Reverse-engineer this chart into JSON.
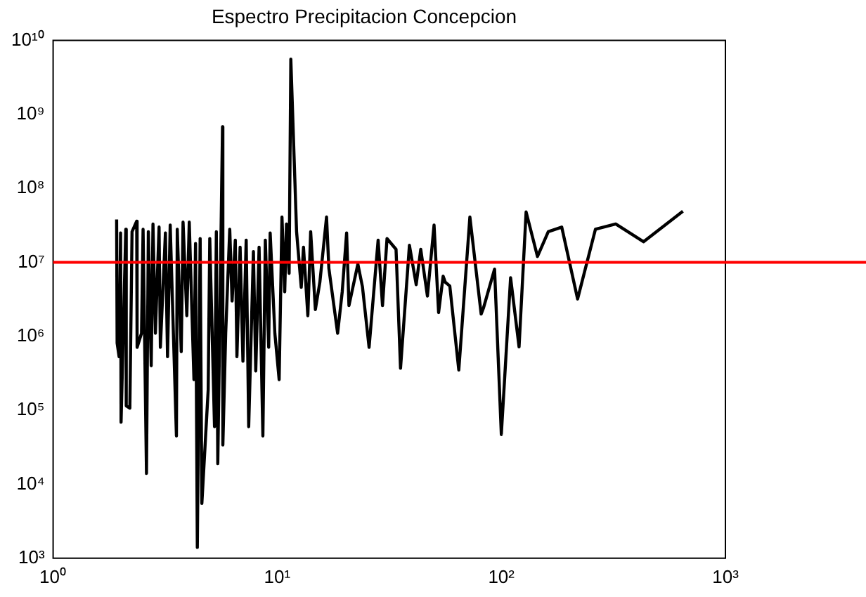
{
  "chart_data": {
    "type": "line",
    "title": "Espectro Precipitacion Concepcion",
    "log": "xy",
    "grid": false,
    "legend": false,
    "marker": "none",
    "line_style": "solid",
    "xlim": [
      1,
      1000
    ],
    "xticks": [
      {
        "value": 1,
        "label": "10⁰"
      },
      {
        "value": 10,
        "label": "10¹"
      },
      {
        "value": 100,
        "label": "10²"
      },
      {
        "value": 1000,
        "label": "10³"
      }
    ],
    "ylim": [
      1000,
      10000000000
    ],
    "yticks": [
      {
        "value": 1000,
        "label": "10³"
      },
      {
        "value": 10000,
        "label": "10⁴"
      },
      {
        "value": 100000,
        "label": "10⁵"
      },
      {
        "value": 1000000,
        "label": "10⁶"
      },
      {
        "value": 10000000,
        "label": "10⁷"
      },
      {
        "value": 100000000,
        "label": "10⁸"
      },
      {
        "value": 1000000000,
        "label": "10⁹"
      },
      {
        "value": 10000000000,
        "label": "10¹⁰"
      }
    ],
    "ref_lines": [
      {
        "axis": "y",
        "value": 10000000,
        "color": "#ff0000"
      }
    ],
    "series": [
      {
        "color": "#000000",
        "x": [
          1.92,
          1.93,
          1.97,
          2.0,
          2.01,
          2.11,
          2.12,
          2.2,
          2.25,
          2.36,
          2.37,
          2.48,
          2.52,
          2.61,
          2.66,
          2.74,
          2.79,
          2.86,
          2.97,
          3.01,
          3.17,
          3.24,
          3.33,
          3.55,
          3.58,
          3.73,
          3.8,
          3.95,
          4.05,
          4.25,
          4.32,
          4.4,
          4.53,
          4.61,
          4.92,
          5.0,
          5.25,
          5.35,
          5.43,
          5.7,
          5.72,
          5.89,
          6.14,
          6.29,
          6.5,
          6.61,
          6.83,
          7.03,
          7.27,
          7.46,
          7.83,
          8.02,
          8.3,
          8.63,
          8.85,
          9.16,
          9.3,
          9.76,
          10.2,
          10.5,
          10.8,
          11.0,
          11.3,
          11.5,
          12.2,
          12.8,
          13.1,
          13.7,
          14.1,
          14.8,
          15.5,
          16.6,
          17.0,
          18.6,
          19.5,
          20.4,
          20.9,
          22.9,
          24.0,
          25.7,
          28.2,
          29.5,
          30.9,
          33.9,
          35.5,
          38.9,
          41.7,
          43.7,
          46.8,
          50.1,
          52.5,
          55,
          56.2,
          58.9,
          64.6,
          72.4,
          81.3,
          83.2,
          93.3,
          100,
          110,
          120,
          129,
          145,
          162,
          186,
          219,
          263,
          324,
          431,
          646
        ],
        "values": [
          38000000,
          810000,
          530000,
          25000000,
          69000,
          28000000,
          115000,
          107000,
          26000000,
          36000000,
          710000,
          1100000,
          28000000,
          14000,
          26000000,
          400000,
          33000000,
          1100000,
          30000000,
          710000,
          25000000,
          530000,
          32000000,
          45000,
          28000000,
          620000,
          35000000,
          1900000,
          35000000,
          260000,
          18000000,
          1400,
          21000000,
          5500,
          190000,
          21000000,
          60000,
          26000000,
          19000,
          680000000,
          34000,
          1100000,
          28000000,
          3000000,
          20000000,
          530000,
          16000000,
          460000,
          20000000,
          60000,
          14000000,
          340000,
          16000000,
          45000,
          20000000,
          710000,
          25000000,
          1100000,
          260000,
          41000000,
          4000000,
          33000000,
          7100000,
          5600000000,
          26000000,
          4600000,
          16000000,
          1900000,
          26000000,
          2300000,
          5400000,
          41000000,
          8300000,
          1100000,
          4000000,
          25000000,
          2600000,
          9500000,
          4700000,
          710000,
          20000000,
          2600000,
          21000000,
          15000000,
          370000,
          17000000,
          5000000,
          15000000,
          3500000,
          32000000,
          2100000,
          6500000,
          5400000,
          4800000,
          350000,
          41000000,
          2000000,
          2400000,
          8100000,
          47000,
          6200000,
          720000,
          48000000,
          12000000,
          26000000,
          30000000,
          3200000,
          28000000,
          33000000,
          19000000,
          49000000
        ]
      }
    ]
  }
}
